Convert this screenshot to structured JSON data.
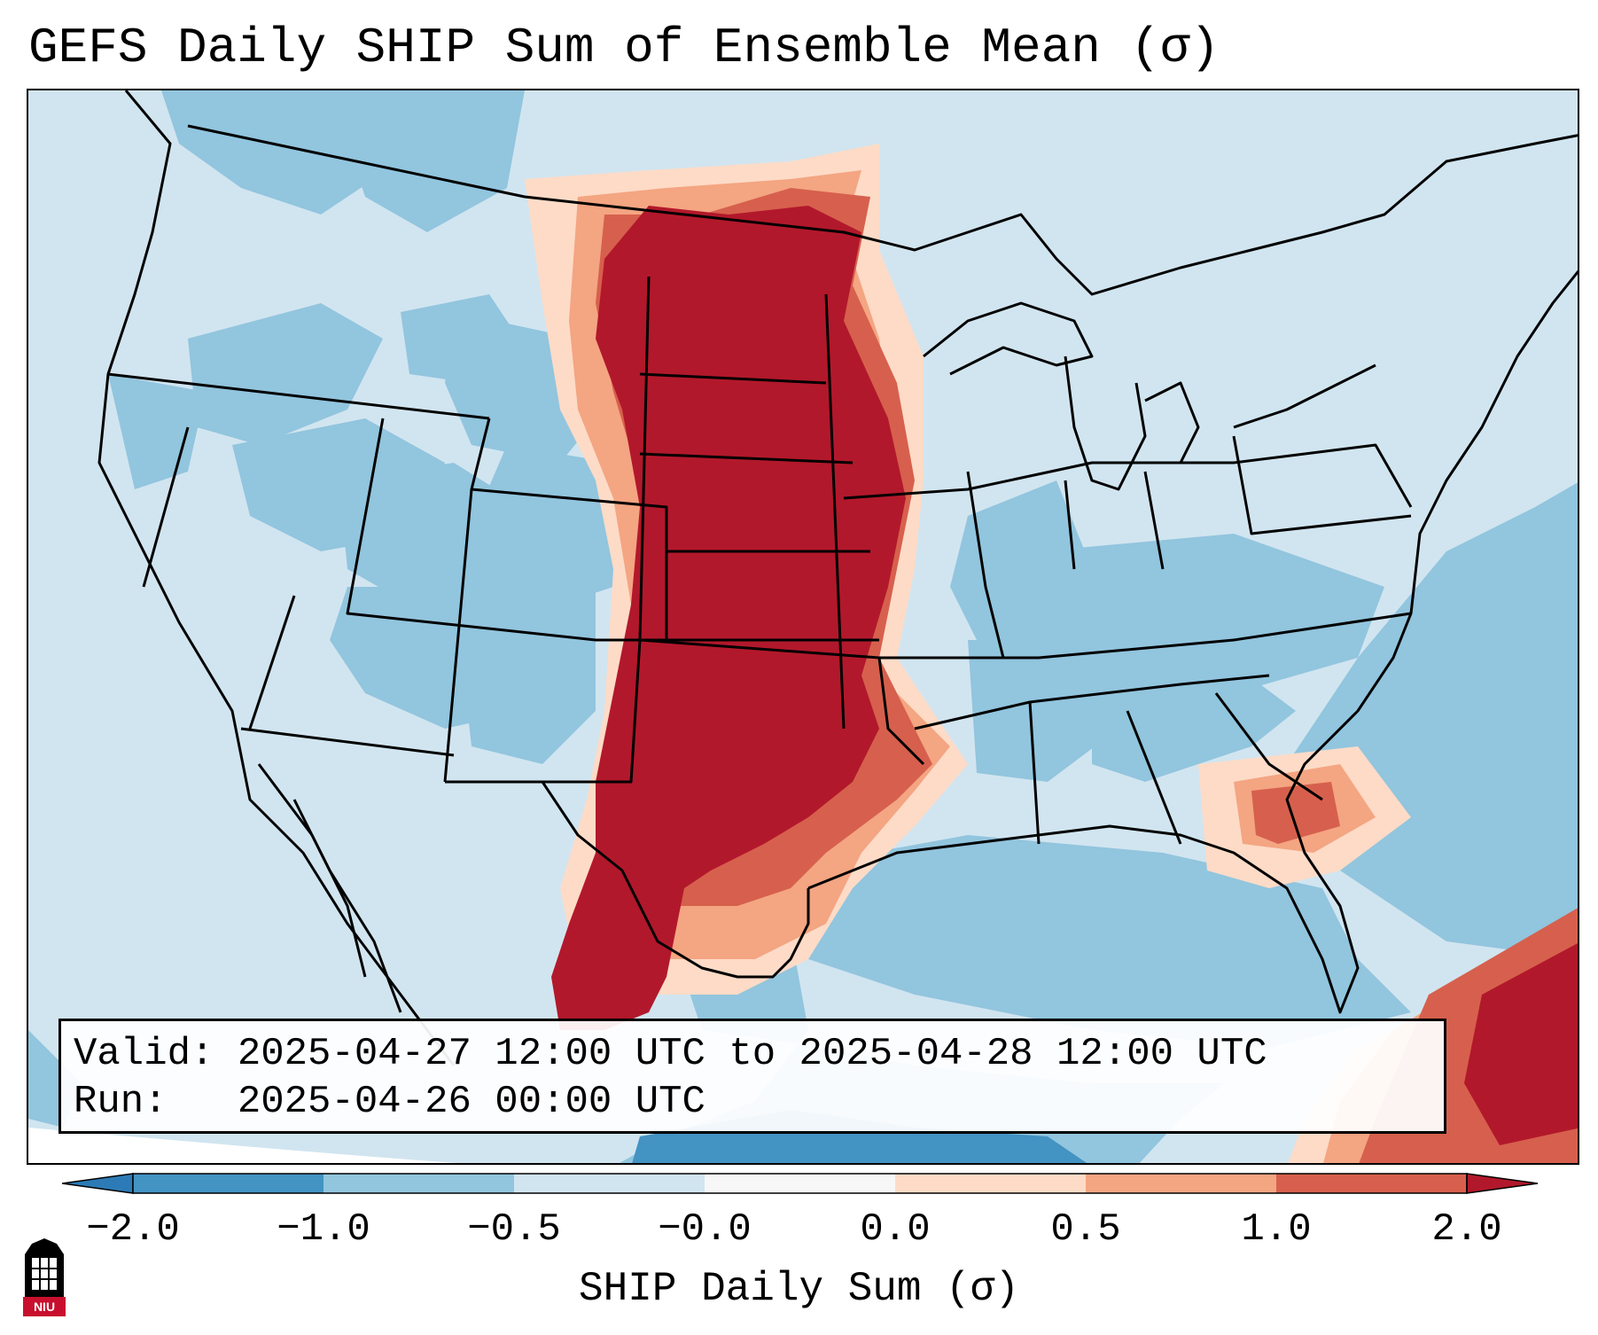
{
  "title": "GEFS Daily SHIP Sum of Ensemble Mean (σ)",
  "info": {
    "valid_label": "Valid:",
    "valid_value": "2025-04-27 12:00 UTC to 2025-04-28 12:00 UTC",
    "run_label": "Run:",
    "run_value": "2025-04-26 00:00 UTC"
  },
  "colorbar": {
    "label": "SHIP Daily Sum (σ)",
    "ticks": [
      "−2.0",
      "−1.0",
      "−0.5",
      "−0.0",
      "0.0",
      "0.5",
      "1.0",
      "2.0"
    ],
    "bins": [
      {
        "range": "< -2.0",
        "color": "#2c7bb6"
      },
      {
        "range": "-2.0 to -1.0",
        "color": "#4393c3"
      },
      {
        "range": "-1.0 to -0.5",
        "color": "#92c5de"
      },
      {
        "range": "-0.5 to -0.0",
        "color": "#d1e5f0"
      },
      {
        "range": "-0.0 to 0.0",
        "color": "#f7f7f7"
      },
      {
        "range": "0.0 to 0.5",
        "color": "#fddbc7"
      },
      {
        "range": "0.5 to 1.0",
        "color": "#f4a582"
      },
      {
        "range": "1.0 to 2.0",
        "color": "#d6604d"
      },
      {
        "range": "> 2.0",
        "color": "#b2182b"
      }
    ]
  },
  "logo": {
    "text": "NIU",
    "color": "#c8102e"
  }
}
